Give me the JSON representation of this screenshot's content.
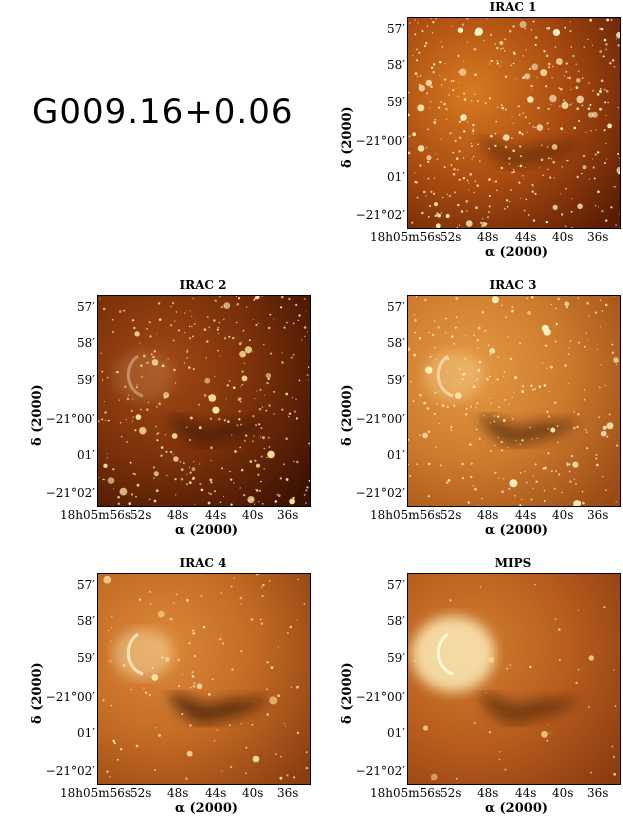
{
  "title": "G009.16+0.06",
  "panels": [
    {
      "id": "irac1",
      "label": "IRAC 1"
    },
    {
      "id": "irac2",
      "label": "IRAC 2"
    },
    {
      "id": "irac3",
      "label": "IRAC 3"
    },
    {
      "id": "irac4",
      "label": "IRAC 4"
    },
    {
      "id": "mips",
      "label": "MIPS"
    }
  ],
  "axes": {
    "y_label": "δ (2000)",
    "x_label": "α (2000)",
    "y_ticks": [
      "57′",
      "58′",
      "59′",
      "−21°00′",
      "01′",
      "−21°02′"
    ],
    "x_ticks": [
      "18h05m56s",
      "52s",
      "48s",
      "44s",
      "40s",
      "36s"
    ]
  },
  "colors": {
    "irac1": "#f5a032",
    "irac2": "#c25e18",
    "irac3": "#e08a34",
    "irac4": "#d4782a",
    "mips": "#c8621e"
  }
}
